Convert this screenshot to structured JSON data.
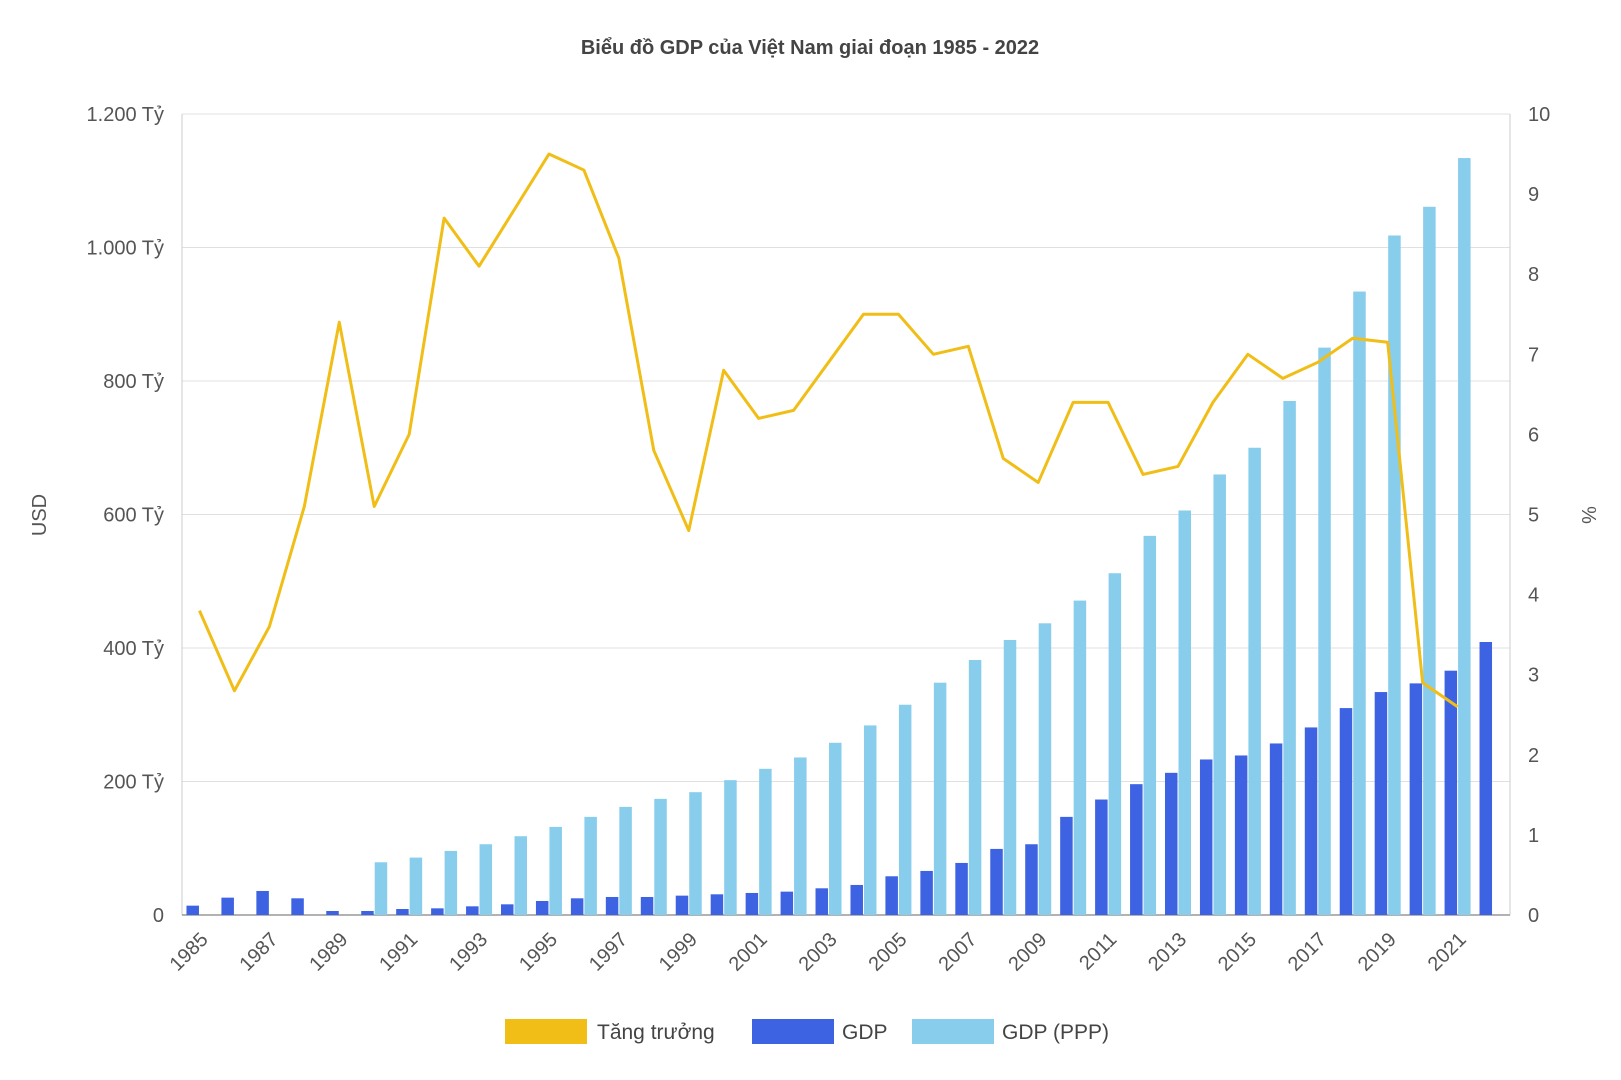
{
  "chart_data": {
    "type": "bar",
    "title": "Biểu đồ GDP của Việt Nam giai đoạn 1985 - 2022",
    "ylabel_left": "USD",
    "ylabel_right": "%",
    "ylim_left": [
      0,
      1200
    ],
    "ylim_right": [
      0,
      10
    ],
    "yticks_left": [
      "0",
      "200 Tỷ",
      "400 Tỷ",
      "600 Tỷ",
      "800 Tỷ",
      "1.000 Tỷ",
      "1.200 Tỷ"
    ],
    "yticks_right": [
      "0",
      "1",
      "2",
      "3",
      "4",
      "5",
      "6",
      "7",
      "8",
      "9",
      "10"
    ],
    "grid": true,
    "legend_position": "bottom",
    "x": [
      1985,
      1986,
      1987,
      1988,
      1989,
      1990,
      1991,
      1992,
      1993,
      1994,
      1995,
      1996,
      1997,
      1998,
      1999,
      2000,
      2001,
      2002,
      2003,
      2004,
      2005,
      2006,
      2007,
      2008,
      2009,
      2010,
      2011,
      2012,
      2013,
      2014,
      2015,
      2016,
      2017,
      2018,
      2019,
      2020,
      2021,
      2022
    ],
    "xtick_labels": [
      "1985",
      "1987",
      "1989",
      "1991",
      "1993",
      "1995",
      "1997",
      "1999",
      "2001",
      "2003",
      "2005",
      "2007",
      "2009",
      "2011",
      "2013",
      "2015",
      "2017",
      "2019",
      "2021"
    ],
    "series": [
      {
        "name": "Tăng trưởng",
        "type": "line",
        "axis": "right",
        "color": "#F0BE16",
        "values": [
          3.8,
          2.8,
          3.6,
          5.1,
          7.4,
          5.1,
          6.0,
          8.7,
          8.1,
          8.8,
          9.5,
          9.3,
          8.2,
          5.8,
          4.8,
          6.8,
          6.2,
          6.3,
          6.9,
          7.5,
          7.5,
          7.0,
          7.1,
          5.7,
          5.4,
          6.4,
          6.4,
          5.5,
          5.6,
          6.4,
          7.0,
          6.7,
          6.9,
          7.2,
          7.15,
          2.9,
          2.6,
          null
        ]
      },
      {
        "name": "GDP",
        "type": "bar",
        "axis": "left",
        "color": "#3E63E2",
        "values": [
          14,
          26,
          36,
          25,
          6,
          6,
          9,
          10,
          13,
          16,
          21,
          25,
          27,
          27,
          29,
          31,
          33,
          35,
          40,
          45,
          58,
          66,
          78,
          99,
          106,
          147,
          173,
          196,
          213,
          233,
          239,
          257,
          281,
          310,
          334,
          347,
          366,
          409
        ]
      },
      {
        "name": "GDP (PPP)",
        "type": "bar",
        "axis": "left",
        "color": "#88CDEC",
        "values": [
          null,
          null,
          null,
          null,
          null,
          79,
          86,
          96,
          106,
          118,
          132,
          147,
          162,
          174,
          184,
          202,
          219,
          236,
          258,
          284,
          315,
          348,
          382,
          412,
          437,
          471,
          512,
          568,
          606,
          660,
          700,
          770,
          850,
          934,
          1018,
          1061,
          1134,
          null
        ]
      }
    ]
  }
}
